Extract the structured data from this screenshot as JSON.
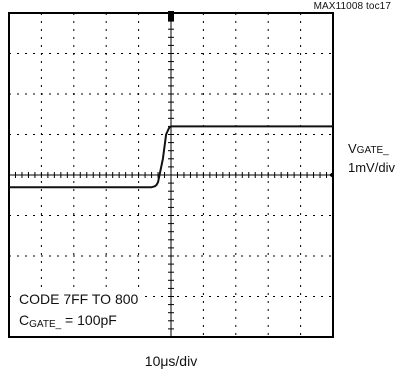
{
  "figure_id": "MAX11008 toc17",
  "chart_data": {
    "type": "line",
    "title": "",
    "xlabel": "10μs/div",
    "ylabel": "",
    "grid": true,
    "divisions": {
      "x": 10,
      "y": 8
    },
    "x": [
      -5,
      -0.6,
      -0.5,
      -0.45,
      -0.4,
      -0.25,
      -0.15,
      -0.05,
      0,
      5
    ],
    "y": [
      -0.3,
      -0.3,
      -0.28,
      -0.25,
      -0.18,
      0.4,
      1.0,
      1.18,
      1.2,
      1.2
    ],
    "y_unit_note": "vertical divisions",
    "series": [
      {
        "channel_name": "V",
        "channel_subscript": "GATE_",
        "scale": "1mV/div"
      }
    ],
    "annotations": {
      "line1": "CODE 7FF TO 800",
      "line2_prefix": "C",
      "line2_subscript": "GATE_",
      "line2_suffix": " = 100pF"
    },
    "colors": {
      "grid": "#000000",
      "trace": "#111111",
      "background": "#ffffff"
    }
  }
}
